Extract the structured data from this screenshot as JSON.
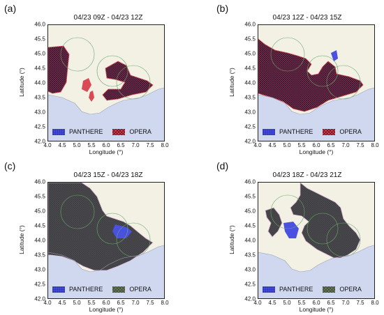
{
  "panels": [
    {
      "letter": "(a)",
      "title": "04/23 09Z - 04/23 12Z",
      "legend": [
        "PANTHERE",
        "OPERA"
      ],
      "opera_style": "red"
    },
    {
      "letter": "(b)",
      "title": "04/23 12Z - 04/23 15Z",
      "legend": [
        "PANTHERE",
        "OPERA"
      ],
      "opera_style": "red"
    },
    {
      "letter": "(c)",
      "title": "04/23 15Z - 04/23 18Z",
      "legend": [
        "PANTHERE",
        "OPERA"
      ],
      "opera_style": "green"
    },
    {
      "letter": "(d)",
      "title": "04/23 18Z - 04/23 21Z",
      "legend": [
        "PANTHERE",
        "OPERA"
      ],
      "opera_style": "green"
    }
  ],
  "axes": {
    "xlabel": "Longitude (°)",
    "ylabel": "Latitude (°)",
    "xticks": [
      "4.0",
      "4.5",
      "5.0",
      "5.5",
      "6.0",
      "6.5",
      "7.0",
      "7.5",
      "8.0"
    ],
    "yticks": [
      "46.0",
      "45.5",
      "45.0",
      "44.5",
      "44.0",
      "43.5",
      "43.0",
      "42.5",
      "42.0"
    ],
    "xlim": [
      4.0,
      8.0
    ],
    "ylim": [
      42.0,
      46.0
    ]
  },
  "colors": {
    "land": "#f2f1e4",
    "sea": "#cfd8ef",
    "panthere": "#4a50e0",
    "opera_red": "#d94a55",
    "overlap": "#7a2a55",
    "radar_circle": "#6aa86a"
  }
}
